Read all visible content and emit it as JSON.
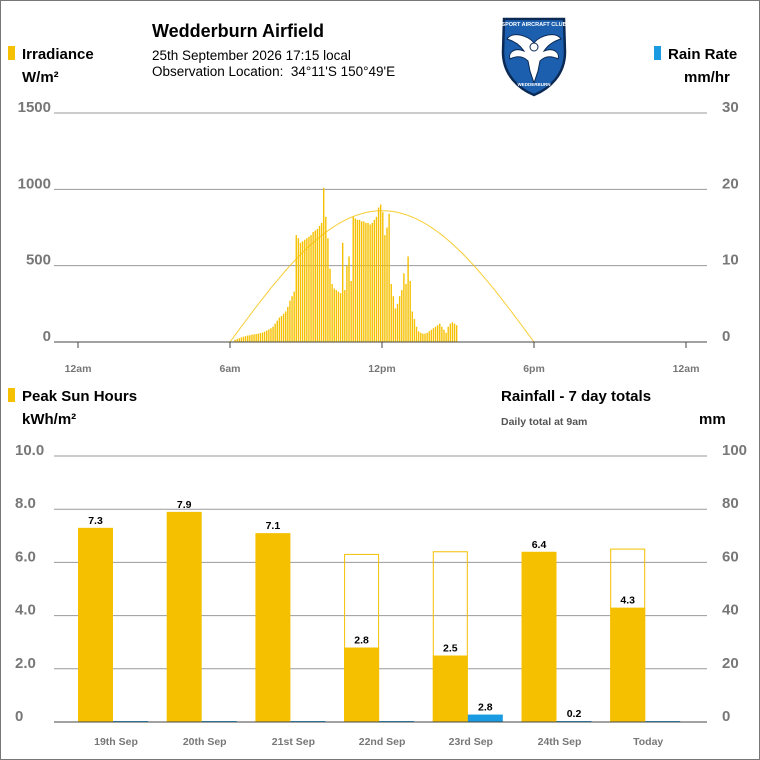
{
  "header": {
    "title": "Wedderburn Airfield",
    "datetime": "25th September 2026  17:15 local",
    "location_label": "Observation Location:",
    "location_value": "34°11'S 150°49'E",
    "logo_text_top": "SPORT AIRCRAFT CLUB",
    "logo_text_bottom": "WEDDERBURN"
  },
  "colors": {
    "solar": "#f5c000",
    "rain": "#1a9ae0",
    "grid": "#9a9a9a",
    "axis": "#444444",
    "axis_text": "#777777"
  },
  "top_chart": {
    "left_label": "Irradiance",
    "left_unit": "W/m²",
    "right_label": "Rain Rate",
    "right_unit": "mm/hr"
  },
  "bottom_chart": {
    "left_label": "Peak Sun Hours",
    "left_unit": "kWh/m²",
    "right_label": "Rainfall - 7 day totals",
    "right_note": "Daily total at 9am",
    "right_unit": "mm"
  },
  "chart_data": [
    {
      "type": "bar",
      "name": "irradiance",
      "x_ticks": [
        "12am",
        "6am",
        "12pm",
        "6pm",
        "12am"
      ],
      "x_range_hours": [
        0,
        24
      ],
      "ylim_left": [
        0,
        1500
      ],
      "yticks_left": [
        "1500",
        "1000",
        "500",
        "0"
      ],
      "ylim_right": [
        0,
        30
      ],
      "yticks_right": [
        "30",
        "20",
        "10",
        "0"
      ],
      "clear_sky_curve": {
        "start_hour": 6.0,
        "end_hour": 18.0,
        "peak_hour": 12.0,
        "peak_value": 860
      },
      "irradiance_start_hour": 6.2,
      "irradiance_step_hours": 0.0833,
      "irradiance_values": [
        15,
        20,
        25,
        30,
        35,
        38,
        42,
        45,
        48,
        50,
        52,
        55,
        58,
        62,
        68,
        75,
        82,
        90,
        100,
        120,
        140,
        160,
        170,
        185,
        200,
        230,
        270,
        300,
        330,
        700,
        680,
        650,
        660,
        670,
        680,
        690,
        700,
        720,
        730,
        740,
        760,
        780,
        1010,
        820,
        680,
        480,
        380,
        350,
        340,
        330,
        320,
        650,
        340,
        500,
        560,
        400,
        820,
        810,
        800,
        800,
        790,
        790,
        780,
        780,
        770,
        780,
        800,
        820,
        880,
        900,
        850,
        700,
        750,
        840,
        380,
        300,
        220,
        250,
        300,
        340,
        450,
        380,
        560,
        400,
        200,
        150,
        100,
        70,
        60,
        55,
        55,
        60,
        70,
        80,
        90,
        100,
        110,
        120,
        100,
        80,
        60,
        100,
        120,
        130,
        120,
        110
      ],
      "rain_rate_values": []
    },
    {
      "type": "bar",
      "name": "daily",
      "categories": [
        "19th Sep",
        "20th Sep",
        "21st Sep",
        "22nd Sep",
        "23rd Sep",
        "24th Sep",
        "Today"
      ],
      "peak_sun_hours": [
        7.3,
        7.9,
        7.1,
        2.8,
        2.5,
        6.4,
        4.3
      ],
      "peak_sun_hours_labels": [
        "7.3",
        "7.9",
        "7.1",
        "2.8",
        "2.5",
        "6.4",
        "4.3"
      ],
      "potential_sun_hours": [
        null,
        null,
        null,
        6.3,
        6.4,
        null,
        6.5
      ],
      "rainfall_mm": [
        0,
        0,
        0,
        0,
        2.8,
        0.2,
        0
      ],
      "rainfall_labels": [
        "",
        "",
        "",
        "",
        "2.8",
        "0.2",
        ""
      ],
      "ylim_left": [
        0,
        10
      ],
      "yticks_left": [
        "10.0",
        "8.0",
        "6.0",
        "4.0",
        "2.0",
        "0"
      ],
      "ylim_right": [
        0,
        100
      ],
      "yticks_right": [
        "100",
        "80",
        "60",
        "40",
        "20",
        "0"
      ]
    }
  ]
}
